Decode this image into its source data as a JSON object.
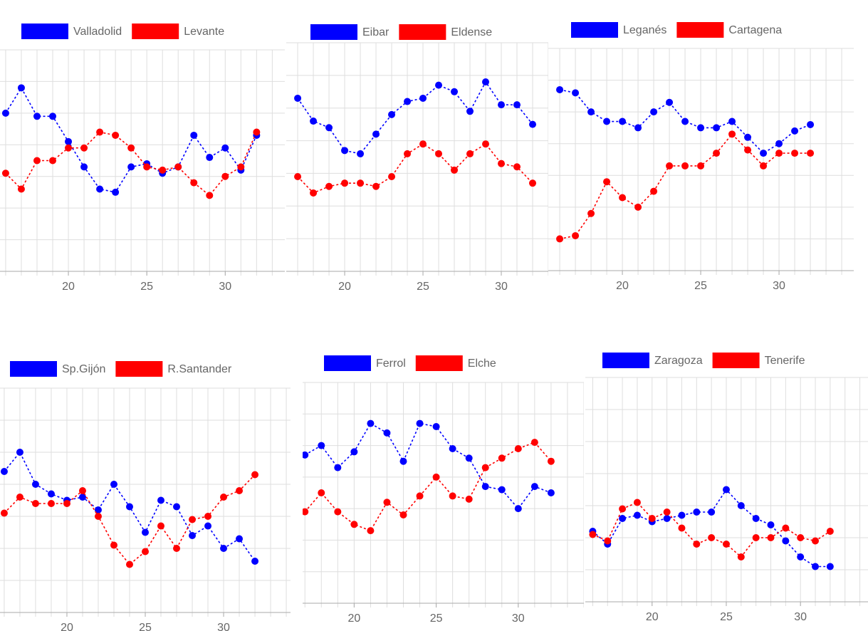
{
  "chart_data": [
    {
      "type": "line",
      "x": [
        16,
        17,
        18,
        19,
        20,
        21,
        22,
        23,
        24,
        25,
        26,
        27,
        28,
        29,
        30,
        31,
        32
      ],
      "series": [
        {
          "name": "Valladolid",
          "color": "#0000ff",
          "values": [
            5.0,
            5.8,
            4.9,
            4.9,
            4.1,
            3.3,
            2.6,
            2.5,
            3.3,
            3.4,
            3.1,
            3.3,
            4.3,
            3.6,
            3.9,
            3.2,
            4.3
          ]
        },
        {
          "name": "Levante",
          "color": "#ff0000",
          "values": [
            3.1,
            2.6,
            3.5,
            3.5,
            3.9,
            3.9,
            4.4,
            4.3,
            3.9,
            3.3,
            3.2,
            3.3,
            2.8,
            2.4,
            3.0,
            3.3,
            4.4
          ]
        }
      ],
      "xlim": [
        15.64,
        33.8
      ],
      "ylim": [
        0,
        7
      ],
      "xticks": [
        20,
        25,
        30
      ],
      "grid": true
    },
    {
      "type": "line",
      "x": [
        17,
        18,
        19,
        20,
        21,
        22,
        23,
        24,
        25,
        26,
        27,
        28,
        29,
        30,
        31,
        32
      ],
      "series": [
        {
          "name": "Eibar",
          "color": "#0000ff",
          "values": [
            5.3,
            4.6,
            4.4,
            3.7,
            3.6,
            4.2,
            4.8,
            5.2,
            5.3,
            5.7,
            5.5,
            4.9,
            5.8,
            5.1,
            5.1,
            4.5
          ]
        },
        {
          "name": "Eldense",
          "color": "#ff0000",
          "values": [
            2.9,
            2.4,
            2.6,
            2.7,
            2.7,
            2.6,
            2.9,
            3.6,
            3.9,
            3.6,
            3.1,
            3.6,
            3.9,
            3.3,
            3.2,
            2.7
          ]
        }
      ],
      "xlim": [
        16.27,
        33.0
      ],
      "ylim": [
        0,
        7
      ],
      "xticks": [
        20,
        25,
        30
      ],
      "grid": true
    },
    {
      "type": "line",
      "x": [
        16,
        17,
        18,
        19,
        20,
        21,
        22,
        23,
        24,
        25,
        26,
        27,
        28,
        29,
        30,
        31,
        32
      ],
      "series": [
        {
          "name": "Leganés",
          "color": "#0000ff",
          "values": [
            5.7,
            5.6,
            5.0,
            4.7,
            4.7,
            4.5,
            5.0,
            5.3,
            4.7,
            4.5,
            4.5,
            4.7,
            4.2,
            3.7,
            4.0,
            4.4,
            4.6
          ]
        },
        {
          "name": "Cartagena",
          "color": "#ff0000",
          "values": [
            1.0,
            1.1,
            1.8,
            2.8,
            2.3,
            2.0,
            2.5,
            3.3,
            3.3,
            3.3,
            3.7,
            4.3,
            3.8,
            3.3,
            3.7,
            3.7,
            3.7
          ]
        }
      ],
      "xlim": [
        15.27,
        34.77
      ],
      "ylim": [
        0,
        7
      ],
      "xticks": [
        20,
        25,
        30
      ],
      "grid": true
    },
    {
      "type": "line",
      "x": [
        16,
        17,
        18,
        19,
        20,
        21,
        22,
        23,
        24,
        25,
        26,
        27,
        28,
        29,
        30,
        31,
        32
      ],
      "series": [
        {
          "name": "Sp.Gijón",
          "color": "#0000ff",
          "values": [
            4.4,
            5.0,
            4.0,
            3.7,
            3.5,
            3.6,
            3.2,
            4.0,
            3.3,
            2.5,
            3.5,
            3.3,
            2.4,
            2.7,
            2.0,
            2.3,
            1.6
          ]
        },
        {
          "name": "R.Santander",
          "color": "#ff0000",
          "values": [
            3.1,
            3.6,
            3.4,
            3.4,
            3.4,
            3.8,
            3.0,
            2.1,
            1.5,
            1.9,
            2.7,
            2.0,
            2.9,
            3.0,
            3.6,
            3.8,
            4.3
          ]
        }
      ],
      "xlim": [
        15.73,
        34.27
      ],
      "ylim": [
        0,
        7
      ],
      "xticks": [
        20,
        25,
        30
      ],
      "grid": true
    },
    {
      "type": "line",
      "x": [
        17,
        18,
        19,
        20,
        21,
        22,
        23,
        24,
        25,
        26,
        27,
        28,
        29,
        30,
        31,
        32
      ],
      "series": [
        {
          "name": "Ferrol",
          "color": "#0000ff",
          "values": [
            4.7,
            5.0,
            4.3,
            4.8,
            5.7,
            5.4,
            4.5,
            5.7,
            5.6,
            4.9,
            4.6,
            3.7,
            3.6,
            3.0,
            3.7,
            3.5
          ]
        },
        {
          "name": "Elche",
          "color": "#ff0000",
          "values": [
            2.9,
            3.5,
            2.9,
            2.5,
            2.3,
            3.2,
            2.8,
            3.4,
            4.0,
            3.4,
            3.3,
            4.3,
            4.6,
            4.9,
            5.1,
            4.5
          ]
        }
      ],
      "xlim": [
        16.86,
        34.0
      ],
      "ylim": [
        0,
        7
      ],
      "xticks": [
        20,
        25,
        30
      ],
      "grid": true
    },
    {
      "type": "line",
      "x": [
        16,
        17,
        18,
        19,
        20,
        21,
        22,
        23,
        24,
        25,
        26,
        27,
        28,
        29,
        30,
        31,
        32
      ],
      "series": [
        {
          "name": "Zaragoza",
          "color": "#0000ff",
          "values": [
            2.2,
            1.8,
            2.6,
            2.7,
            2.5,
            2.6,
            2.7,
            2.8,
            2.8,
            3.5,
            3.0,
            2.6,
            2.4,
            1.9,
            1.4,
            1.1,
            1.1
          ]
        },
        {
          "name": "Tenerife",
          "color": "#ff0000",
          "values": [
            2.1,
            1.9,
            2.9,
            3.1,
            2.6,
            2.8,
            2.3,
            1.8,
            2.0,
            1.8,
            1.4,
            2.0,
            2.0,
            2.3,
            2.0,
            1.9,
            2.2
          ]
        }
      ],
      "xlim": [
        15.5,
        34.55
      ],
      "ylim": [
        0,
        7
      ],
      "xticks": [
        20,
        25,
        30
      ],
      "grid": true
    }
  ]
}
